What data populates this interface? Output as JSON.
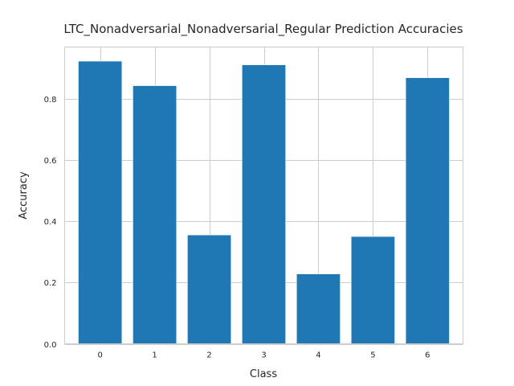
{
  "chart_data": {
    "type": "bar",
    "title": "LTC_Nonadversarial_Nonadversarial_Regular Prediction Accuracies",
    "xlabel": "Class",
    "ylabel": "Accuracy",
    "categories": [
      "0",
      "1",
      "2",
      "3",
      "4",
      "5",
      "6"
    ],
    "values": [
      0.922,
      0.842,
      0.355,
      0.91,
      0.228,
      0.35,
      0.868
    ],
    "ylim": [
      0,
      0.968
    ],
    "yticks": [
      0.0,
      0.2,
      0.4,
      0.6,
      0.8
    ],
    "ytick_labels": [
      "0.0",
      "0.2",
      "0.4",
      "0.6",
      "0.8"
    ],
    "grid": true,
    "bar_color": "#1f77b4"
  }
}
